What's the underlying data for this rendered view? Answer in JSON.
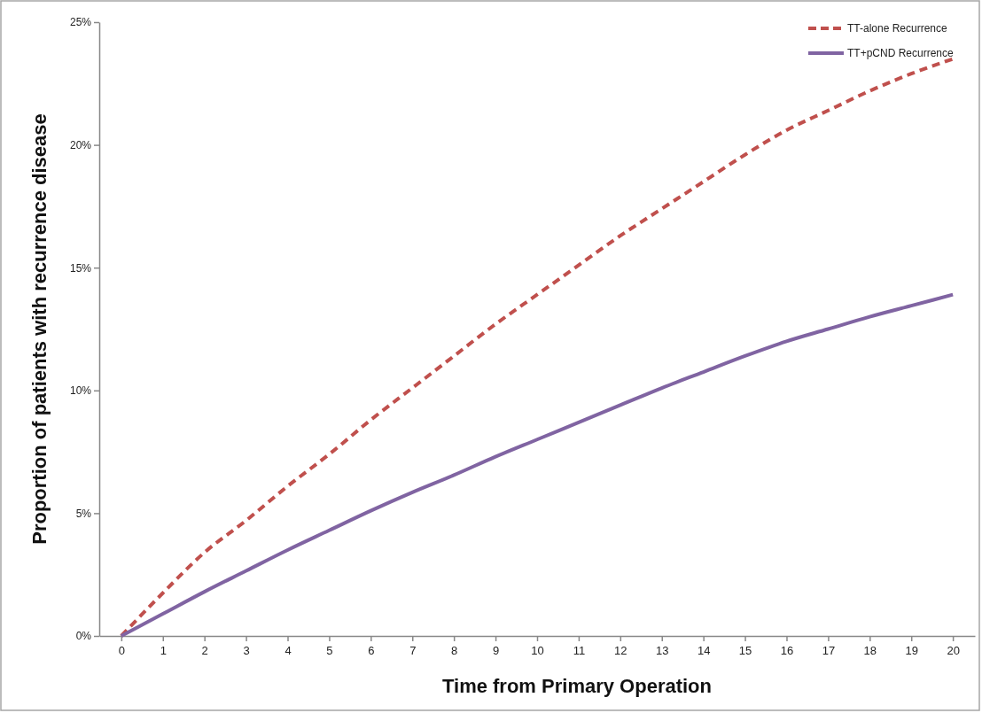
{
  "chart_data": {
    "type": "line",
    "xlabel": "Time from Primary Operation",
    "ylabel": "Proportion of patients with recurrence disease",
    "x": [
      0,
      1,
      2,
      3,
      4,
      5,
      6,
      7,
      8,
      9,
      10,
      11,
      12,
      13,
      14,
      15,
      16,
      17,
      18,
      19,
      20
    ],
    "series": [
      {
        "name": "TT-alone Recurrence",
        "color": "#c0504d",
        "line_style": "dashed",
        "values": [
          0,
          1.75,
          3.4,
          4.7,
          6.1,
          7.4,
          8.8,
          10.1,
          11.4,
          12.7,
          13.9,
          15.1,
          16.3,
          17.4,
          18.5,
          19.6,
          20.6,
          21.4,
          22.2,
          22.9,
          23.5
        ]
      },
      {
        "name": "TT+pCND Recurrence",
        "color": "#8064a2",
        "line_style": "solid",
        "values": [
          0,
          0.9,
          1.8,
          2.65,
          3.5,
          4.3,
          5.1,
          5.85,
          6.55,
          7.3,
          8.0,
          8.7,
          9.4,
          10.1,
          10.75,
          11.4,
          12.0,
          12.5,
          13.0,
          13.45,
          13.9
        ]
      }
    ],
    "xlim": [
      -0.53,
      20.53
    ],
    "xticks": [
      0,
      1,
      2,
      3,
      4,
      5,
      6,
      7,
      8,
      9,
      10,
      11,
      12,
      13,
      14,
      15,
      16,
      17,
      18,
      19,
      20
    ],
    "ylim": [
      0,
      25
    ],
    "yticks": [
      {
        "value": 0,
        "label": "0%"
      },
      {
        "value": 5,
        "label": "5%"
      },
      {
        "value": 10,
        "label": "10%"
      },
      {
        "value": 15,
        "label": "15%"
      },
      {
        "value": 20,
        "label": "20%"
      },
      {
        "value": 25,
        "label": "25%"
      }
    ],
    "grid": false,
    "legend": "top right",
    "marker": "none"
  }
}
